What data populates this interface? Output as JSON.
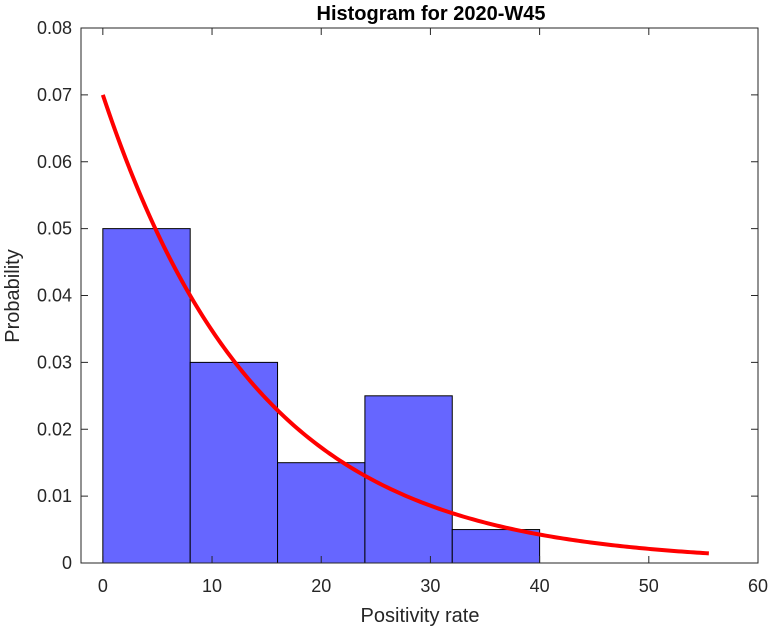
{
  "chart_data": {
    "type": "bar",
    "title": "Histogram for 2020-W45",
    "xlabel": "Positivity rate",
    "ylabel": "Probability",
    "xlim": [
      -2,
      60
    ],
    "ylim": [
      0,
      0.08
    ],
    "xticks": [
      "0",
      "10",
      "20",
      "30",
      "40",
      "50",
      "60"
    ],
    "yticks": [
      "0",
      "0.01",
      "0.02",
      "0.03",
      "0.04",
      "0.05",
      "0.06",
      "0.07",
      "0.08"
    ],
    "bins": [
      {
        "x0": 0,
        "x1": 8,
        "value": 0.05
      },
      {
        "x0": 8,
        "x1": 16,
        "value": 0.03
      },
      {
        "x0": 16,
        "x1": 24,
        "value": 0.015
      },
      {
        "x0": 24,
        "x1": 32,
        "value": 0.025
      },
      {
        "x0": 32,
        "x1": 40,
        "value": 0.005
      }
    ],
    "fit_curve": {
      "type": "exponential",
      "x_range": [
        0,
        55.5
      ],
      "rate": 0.07
    },
    "grid": false,
    "colors": {
      "bar_fill": "#6666ff",
      "bar_edge": "#000000",
      "curve": "#ff0000",
      "axis": "#262626"
    }
  }
}
